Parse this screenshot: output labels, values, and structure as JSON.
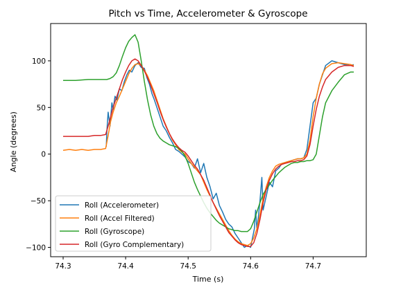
{
  "chart_data": {
    "type": "line",
    "title": "Pitch vs Time, Accelerometer & Gyroscope",
    "xlabel": "Time (s)",
    "ylabel": "Angle (degrees)",
    "xlim": [
      74.28,
      74.785
    ],
    "ylim": [
      -110,
      140
    ],
    "xticks": [
      74.3,
      74.4,
      74.5,
      74.6,
      74.7
    ],
    "xtick_labels": [
      "74.3",
      "74.4",
      "74.5",
      "74.6",
      "74.7"
    ],
    "yticks": [
      100,
      50,
      0,
      -50,
      -100
    ],
    "ytick_labels": [
      "100",
      "50",
      "0",
      "−50",
      "−100"
    ],
    "grid": false,
    "legend_position": "lower-left",
    "series": [
      {
        "name": "Roll (Accelerometer)",
        "color": "#1f77b4",
        "x": [
          74.369,
          74.37,
          74.372,
          74.375,
          74.378,
          74.38,
          74.383,
          74.386,
          74.39,
          74.394,
          74.398,
          74.402,
          74.406,
          74.41,
          74.415,
          74.42,
          74.425,
          74.43,
          74.434,
          74.438,
          74.442,
          74.446,
          74.45,
          74.455,
          74.46,
          74.465,
          74.47,
          74.475,
          74.48,
          74.485,
          74.49,
          74.495,
          74.5,
          74.505,
          74.51,
          74.515,
          74.52,
          74.525,
          74.53,
          74.535,
          74.54,
          74.545,
          74.55,
          74.555,
          74.56,
          74.565,
          74.57,
          74.575,
          74.58,
          74.585,
          74.59,
          74.595,
          74.6,
          74.603,
          74.606,
          74.608,
          74.61,
          74.612,
          74.615,
          74.618,
          74.62,
          74.625,
          74.63,
          74.635,
          74.64,
          74.645,
          74.65,
          74.655,
          74.66,
          74.665,
          74.67,
          74.675,
          74.68,
          74.685,
          74.69,
          74.695,
          74.7,
          74.705,
          74.71,
          74.715,
          74.72,
          74.73,
          74.74,
          74.75,
          74.76,
          74.765
        ],
        "y": [
          8,
          25,
          45,
          30,
          55,
          48,
          62,
          58,
          70,
          68,
          78,
          85,
          90,
          88,
          95,
          98,
          93,
          92,
          82,
          75,
          65,
          58,
          50,
          40,
          30,
          25,
          18,
          12,
          5,
          3,
          0,
          -3,
          -8,
          -10,
          -15,
          -5,
          -20,
          -10,
          -25,
          -35,
          -48,
          -42,
          -55,
          -62,
          -70,
          -75,
          -78,
          -85,
          -90,
          -95,
          -100,
          -98,
          -100,
          -90,
          -80,
          -60,
          -80,
          -70,
          -50,
          -25,
          -60,
          -45,
          -30,
          -35,
          -18,
          -15,
          -10,
          -9,
          -8,
          -7,
          -6,
          -5,
          -5,
          -4,
          5,
          30,
          55,
          60,
          75,
          85,
          95,
          100,
          98,
          96,
          95,
          96
        ]
      },
      {
        "name": "Roll (Accel Filtered)",
        "color": "#ff7f0e",
        "x": [
          74.3,
          74.31,
          74.32,
          74.33,
          74.34,
          74.35,
          74.36,
          74.368,
          74.372,
          74.376,
          74.38,
          74.385,
          74.39,
          74.395,
          74.4,
          74.405,
          74.41,
          74.415,
          74.42,
          74.425,
          74.43,
          74.435,
          74.44,
          74.445,
          74.45,
          74.455,
          74.46,
          74.465,
          74.47,
          74.475,
          74.48,
          74.485,
          74.49,
          74.495,
          74.5,
          74.505,
          74.51,
          74.515,
          74.52,
          74.525,
          74.53,
          74.535,
          74.54,
          74.545,
          74.55,
          74.555,
          74.56,
          74.565,
          74.57,
          74.575,
          74.58,
          74.585,
          74.59,
          74.595,
          74.6,
          74.605,
          74.61,
          74.615,
          74.62,
          74.625,
          74.63,
          74.635,
          74.64,
          74.645,
          74.65,
          74.655,
          74.66,
          74.665,
          74.67,
          74.675,
          74.68,
          74.685,
          74.69,
          74.695,
          74.7,
          74.705,
          74.71,
          74.715,
          74.72,
          74.73,
          74.74,
          74.75,
          74.76,
          74.765
        ],
        "y": [
          4,
          5,
          4,
          5,
          4,
          5,
          5,
          6,
          20,
          35,
          45,
          55,
          62,
          70,
          78,
          86,
          92,
          96,
          97,
          95,
          90,
          84,
          76,
          68,
          58,
          48,
          38,
          30,
          22,
          15,
          10,
          5,
          2,
          0,
          -5,
          -10,
          -14,
          -18,
          -22,
          -30,
          -38,
          -45,
          -52,
          -58,
          -64,
          -70,
          -76,
          -82,
          -87,
          -91,
          -94,
          -96,
          -97,
          -98,
          -96,
          -90,
          -80,
          -65,
          -48,
          -35,
          -25,
          -18,
          -13,
          -11,
          -10,
          -9,
          -8,
          -7,
          -6,
          -5,
          -5,
          -4,
          0,
          15,
          40,
          60,
          75,
          86,
          92,
          97,
          98,
          97,
          96,
          95
        ]
      },
      {
        "name": "Roll (Gyroscope)",
        "color": "#2ca02c",
        "x": [
          74.3,
          74.32,
          74.34,
          74.36,
          74.37,
          74.375,
          74.38,
          74.385,
          74.39,
          74.395,
          74.4,
          74.405,
          74.41,
          74.415,
          74.42,
          74.425,
          74.43,
          74.435,
          74.44,
          74.445,
          74.45,
          74.455,
          74.46,
          74.465,
          74.47,
          74.475,
          74.48,
          74.485,
          74.49,
          74.495,
          74.5,
          74.505,
          74.51,
          74.515,
          74.52,
          74.525,
          74.53,
          74.535,
          74.54,
          74.545,
          74.55,
          74.555,
          74.56,
          74.565,
          74.57,
          74.575,
          74.58,
          74.585,
          74.59,
          74.595,
          74.6,
          74.605,
          74.61,
          74.615,
          74.62,
          74.625,
          74.63,
          74.635,
          74.64,
          74.645,
          74.65,
          74.655,
          74.66,
          74.665,
          74.67,
          74.675,
          74.68,
          74.685,
          74.69,
          74.695,
          74.7,
          74.705,
          74.71,
          74.715,
          74.72,
          74.73,
          74.74,
          74.75,
          74.76,
          74.765
        ],
        "y": [
          79,
          79,
          80,
          80,
          80,
          81,
          83,
          87,
          95,
          105,
          114,
          121,
          125,
          128,
          120,
          100,
          78,
          58,
          42,
          30,
          22,
          17,
          14,
          12,
          10,
          9,
          8,
          6,
          3,
          -2,
          -10,
          -20,
          -30,
          -38,
          -45,
          -52,
          -58,
          -63,
          -67,
          -71,
          -74,
          -76,
          -78,
          -80,
          -81,
          -82,
          -82,
          -83,
          -83,
          -83,
          -80,
          -72,
          -62,
          -52,
          -43,
          -38,
          -33,
          -28,
          -24,
          -20,
          -17,
          -14,
          -12,
          -10,
          -9,
          -9,
          -8,
          -8,
          -7,
          -7,
          -6,
          0,
          20,
          40,
          55,
          68,
          77,
          85,
          88,
          88
        ]
      },
      {
        "name": "Roll (Gyro Complementary)",
        "color": "#d62728",
        "x": [
          74.3,
          74.31,
          74.32,
          74.33,
          74.34,
          74.35,
          74.36,
          74.368,
          74.372,
          74.376,
          74.38,
          74.385,
          74.39,
          74.395,
          74.4,
          74.405,
          74.41,
          74.415,
          74.42,
          74.425,
          74.43,
          74.435,
          74.44,
          74.445,
          74.45,
          74.455,
          74.46,
          74.465,
          74.47,
          74.475,
          74.48,
          74.485,
          74.49,
          74.495,
          74.5,
          74.505,
          74.51,
          74.515,
          74.52,
          74.525,
          74.53,
          74.535,
          74.54,
          74.545,
          74.55,
          74.555,
          74.56,
          74.565,
          74.57,
          74.575,
          74.58,
          74.585,
          74.59,
          74.595,
          74.6,
          74.605,
          74.61,
          74.615,
          74.62,
          74.625,
          74.63,
          74.635,
          74.64,
          74.645,
          74.65,
          74.655,
          74.66,
          74.665,
          74.67,
          74.675,
          74.68,
          74.685,
          74.69,
          74.695,
          74.7,
          74.705,
          74.71,
          74.715,
          74.72,
          74.73,
          74.74,
          74.75,
          74.76,
          74.765
        ],
        "y": [
          19,
          19,
          19,
          19,
          19,
          20,
          20,
          21,
          30,
          40,
          50,
          60,
          70,
          80,
          88,
          95,
          100,
          102,
          100,
          95,
          89,
          82,
          74,
          65,
          56,
          46,
          37,
          29,
          22,
          16,
          11,
          7,
          4,
          2,
          -2,
          -7,
          -12,
          -16,
          -22,
          -28,
          -36,
          -44,
          -52,
          -59,
          -66,
          -72,
          -78,
          -84,
          -88,
          -92,
          -95,
          -97,
          -98,
          -99,
          -99,
          -95,
          -85,
          -70,
          -52,
          -38,
          -28,
          -21,
          -16,
          -13,
          -11,
          -10,
          -9,
          -8,
          -8,
          -7,
          -7,
          -6,
          -2,
          10,
          30,
          48,
          62,
          72,
          80,
          88,
          93,
          95,
          95,
          94
        ]
      }
    ]
  }
}
